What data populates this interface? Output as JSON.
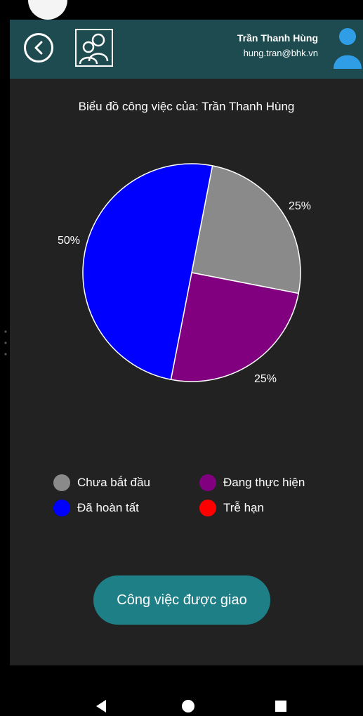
{
  "header": {
    "user_name": "Trần Thanh Hùng",
    "user_email": "hung.tran@bhk.vn",
    "accent_color": "#1d4b4f"
  },
  "chart_title": "Biểu đồ công việc của: Trần Thanh Hùng",
  "chart_data": {
    "type": "pie",
    "title": "Biểu đồ công việc của: Trần Thanh Hùng",
    "slices": [
      {
        "label": "Chưa bắt đầu",
        "value": 25,
        "display": "25%",
        "color": "#8a8a8a"
      },
      {
        "label": "Đang thực hiện",
        "value": 25,
        "display": "25%",
        "color": "#800080"
      },
      {
        "label": "Đã hoàn tất",
        "value": 50,
        "display": "50%",
        "color": "#0000ff"
      },
      {
        "label": "Trễ hạn",
        "value": 0,
        "display": "",
        "color": "#ff0000"
      }
    ],
    "legend_position": "bottom"
  },
  "legend": [
    {
      "label": "Chưa bắt đầu",
      "color": "#8a8a8a"
    },
    {
      "label": "Đang thực hiện",
      "color": "#800080"
    },
    {
      "label": "Đã hoàn tất",
      "color": "#0000ff"
    },
    {
      "label": "Trễ hạn",
      "color": "#ff0000"
    }
  ],
  "assigned_button_label": "Công việc được giao",
  "icons": {
    "back": "back-circle-icon",
    "users": "users-icon",
    "avatar": "user-avatar-icon"
  }
}
